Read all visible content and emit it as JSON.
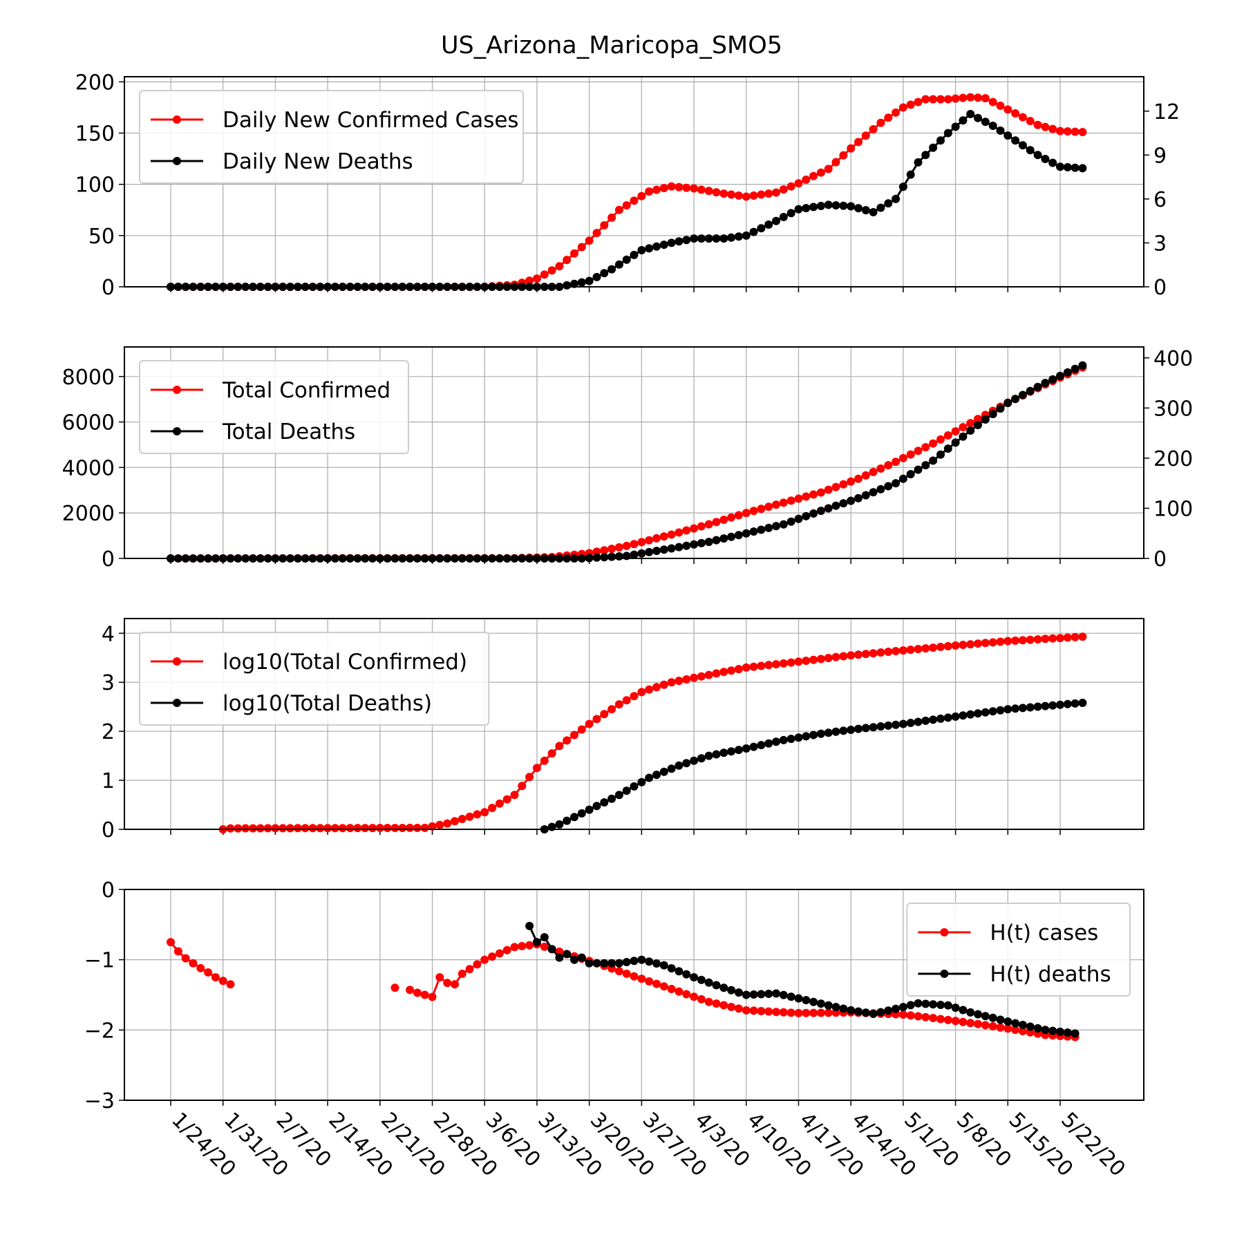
{
  "title": "US_Arizona_Maricopa_SMO5",
  "x_tick_labels": [
    "1/24/20",
    "1/31/20",
    "2/7/20",
    "2/14/20",
    "2/21/20",
    "2/28/20",
    "3/6/20",
    "3/13/20",
    "3/20/20",
    "3/27/20",
    "4/3/20",
    "4/10/20",
    "4/17/20",
    "4/24/20",
    "5/1/20",
    "5/8/20",
    "5/15/20",
    "5/22/20"
  ],
  "colors": {
    "cases": "#ff0000",
    "deaths": "#000000",
    "grid": "#b0b0b0"
  },
  "chart_data": [
    {
      "type": "line",
      "panel": "daily",
      "legend_position": "upper left",
      "grid": true,
      "x_start": "1/24/20",
      "x_end": "5/25/20",
      "ylim": [
        0,
        205
      ],
      "y2lim": [
        0,
        14.35
      ],
      "yticks": [
        "0",
        "50",
        "100",
        "150",
        "200"
      ],
      "y2ticks": [
        "0",
        "3",
        "6",
        "9",
        "12"
      ],
      "series": [
        {
          "name": "Daily New Confirmed Cases",
          "axis": "left",
          "points": [
            [
              "1/24/20",
              0
            ],
            [
              "3/6/20",
              0
            ],
            [
              "3/10/20",
              2
            ],
            [
              "3/13/20",
              8
            ],
            [
              "3/16/20",
              20
            ],
            [
              "3/20/20",
              45
            ],
            [
              "3/24/20",
              75
            ],
            [
              "3/28/20",
              93
            ],
            [
              "3/31/20",
              98
            ],
            [
              "4/3/20",
              96
            ],
            [
              "4/7/20",
              91
            ],
            [
              "4/10/20",
              88
            ],
            [
              "4/14/20",
              92
            ],
            [
              "4/17/20",
              101
            ],
            [
              "4/21/20",
              115
            ],
            [
              "4/24/20",
              135
            ],
            [
              "4/28/20",
              160
            ],
            [
              "5/1/20",
              175
            ],
            [
              "5/4/20",
              183
            ],
            [
              "5/7/20",
              183
            ],
            [
              "5/10/20",
              185
            ],
            [
              "5/12/20",
              184
            ],
            [
              "5/15/20",
              173
            ],
            [
              "5/19/20",
              158
            ],
            [
              "5/22/20",
              152
            ],
            [
              "5/25/20",
              151
            ]
          ]
        },
        {
          "name": "Daily New Deaths",
          "axis": "right",
          "points": [
            [
              "1/24/20",
              0
            ],
            [
              "3/16/20",
              0
            ],
            [
              "3/20/20",
              0.4
            ],
            [
              "3/23/20",
              1.2
            ],
            [
              "3/27/20",
              2.5
            ],
            [
              "3/31/20",
              3.0
            ],
            [
              "4/3/20",
              3.3
            ],
            [
              "4/7/20",
              3.3
            ],
            [
              "4/10/20",
              3.5
            ],
            [
              "4/14/20",
              4.5
            ],
            [
              "4/17/20",
              5.3
            ],
            [
              "4/21/20",
              5.6
            ],
            [
              "4/24/20",
              5.5
            ],
            [
              "4/27/20",
              5.1
            ],
            [
              "4/30/20",
              6.0
            ],
            [
              "5/3/20",
              8.5
            ],
            [
              "5/7/20",
              10.5
            ],
            [
              "5/10/20",
              11.8
            ],
            [
              "5/13/20",
              11.0
            ],
            [
              "5/16/20",
              10.0
            ],
            [
              "5/19/20",
              9.0
            ],
            [
              "5/22/20",
              8.2
            ],
            [
              "5/25/20",
              8.1
            ]
          ]
        }
      ]
    },
    {
      "type": "line",
      "panel": "total",
      "legend_position": "upper left",
      "grid": true,
      "x_start": "1/24/20",
      "x_end": "5/25/20",
      "ylim": [
        0,
        9300
      ],
      "y2lim": [
        0,
        421.8
      ],
      "yticks": [
        "0",
        "2000",
        "4000",
        "6000",
        "8000"
      ],
      "y2ticks": [
        "0",
        "100",
        "200",
        "300",
        "400"
      ],
      "series": [
        {
          "name": "Total Confirmed",
          "axis": "left",
          "points": [
            [
              "1/24/20",
              0
            ],
            [
              "3/10/20",
              10
            ],
            [
              "3/15/20",
              60
            ],
            [
              "3/20/20",
              230
            ],
            [
              "3/25/20",
              550
            ],
            [
              "3/31/20",
              1050
            ],
            [
              "4/5/20",
              1500
            ],
            [
              "4/10/20",
              2000
            ],
            [
              "4/15/20",
              2450
            ],
            [
              "4/20/20",
              2900
            ],
            [
              "4/25/20",
              3500
            ],
            [
              "4/30/20",
              4250
            ],
            [
              "5/5/20",
              5050
            ],
            [
              "5/10/20",
              5950
            ],
            [
              "5/15/20",
              6850
            ],
            [
              "5/20/20",
              7650
            ],
            [
              "5/25/20",
              8400
            ]
          ]
        },
        {
          "name": "Total Deaths",
          "axis": "right",
          "points": [
            [
              "1/24/20",
              0
            ],
            [
              "3/19/20",
              0
            ],
            [
              "3/25/20",
              5
            ],
            [
              "3/31/20",
              20
            ],
            [
              "4/5/20",
              33
            ],
            [
              "4/10/20",
              50
            ],
            [
              "4/15/20",
              68
            ],
            [
              "4/20/20",
              95
            ],
            [
              "4/25/20",
              120
            ],
            [
              "4/30/20",
              150
            ],
            [
              "5/5/20",
              195
            ],
            [
              "5/10/20",
              255
            ],
            [
              "5/15/20",
              310
            ],
            [
              "5/20/20",
              350
            ],
            [
              "5/25/20",
              385
            ]
          ]
        }
      ]
    },
    {
      "type": "line",
      "panel": "log",
      "legend_position": "upper left",
      "grid": true,
      "x_start": "1/24/20",
      "x_end": "5/25/20",
      "ylim": [
        0,
        4.3
      ],
      "yticks": [
        "0",
        "1",
        "2",
        "3",
        "4"
      ],
      "series": [
        {
          "name": "log10(Total Confirmed)",
          "axis": "left",
          "points": [
            [
              "1/31/20",
              0
            ],
            [
              "2/1/20",
              0.02
            ],
            [
              "2/27/20",
              0.03
            ],
            [
              "3/1/20",
              0.12
            ],
            [
              "3/6/20",
              0.35
            ],
            [
              "3/10/20",
              0.7
            ],
            [
              "3/13/20",
              1.25
            ],
            [
              "3/16/20",
              1.7
            ],
            [
              "3/20/20",
              2.15
            ],
            [
              "3/24/20",
              2.55
            ],
            [
              "3/27/20",
              2.8
            ],
            [
              "3/31/20",
              3.0
            ],
            [
              "4/5/20",
              3.15
            ],
            [
              "4/10/20",
              3.3
            ],
            [
              "4/17/20",
              3.42
            ],
            [
              "4/24/20",
              3.55
            ],
            [
              "5/1/20",
              3.65
            ],
            [
              "5/8/20",
              3.75
            ],
            [
              "5/15/20",
              3.84
            ],
            [
              "5/25/20",
              3.93
            ]
          ]
        },
        {
          "name": "log10(Total Deaths)",
          "axis": "left",
          "points": [
            [
              "3/14/20",
              0
            ],
            [
              "3/16/20",
              0.1
            ],
            [
              "3/20/20",
              0.4
            ],
            [
              "3/24/20",
              0.7
            ],
            [
              "3/28/20",
              1.05
            ],
            [
              "4/1/20",
              1.3
            ],
            [
              "4/5/20",
              1.5
            ],
            [
              "4/10/20",
              1.65
            ],
            [
              "4/15/20",
              1.82
            ],
            [
              "4/20/20",
              1.95
            ],
            [
              "4/25/20",
              2.05
            ],
            [
              "5/1/20",
              2.15
            ],
            [
              "5/8/20",
              2.3
            ],
            [
              "5/15/20",
              2.45
            ],
            [
              "5/25/20",
              2.58
            ]
          ]
        }
      ]
    },
    {
      "type": "line",
      "panel": "H(t)",
      "legend_position": "upper right",
      "grid": true,
      "x_start": "1/24/20",
      "x_end": "5/25/20",
      "ylim": [
        -3,
        0
      ],
      "yticks": [
        "−3",
        "−2",
        "−1",
        "0"
      ],
      "series": [
        {
          "name": "H(t) cases",
          "axis": "left",
          "points": [
            [
              "1/24/20",
              -0.75
            ],
            [
              "1/25/20",
              -0.88
            ],
            [
              "1/26/20",
              -0.98
            ],
            [
              "1/27/20",
              -1.05
            ],
            [
              "1/28/20",
              -1.12
            ],
            [
              "1/29/20",
              -1.18
            ],
            [
              "1/30/20",
              -1.25
            ],
            [
              "1/31/20",
              -1.3
            ],
            [
              "2/1/20",
              null
            ],
            [
              "2/1/20",
              -1.35
            ],
            [
              "2/2/20",
              null
            ],
            [
              "2/23/20",
              -1.4
            ],
            [
              "2/24/20",
              null
            ],
            [
              "2/25/20",
              -1.43
            ],
            [
              "2/26/20",
              -1.47
            ],
            [
              "2/27/20",
              -1.5
            ],
            [
              "2/28/20",
              -1.53
            ],
            [
              "2/29/20",
              -1.25
            ],
            [
              "3/1/20",
              -1.33
            ],
            [
              "3/2/20",
              -1.35
            ],
            [
              "3/3/20",
              -1.2
            ],
            [
              "3/6/20",
              -1.0
            ],
            [
              "3/10/20",
              -0.82
            ],
            [
              "3/13/20",
              -0.78
            ],
            [
              "3/17/20",
              -0.92
            ],
            [
              "3/21/20",
              -1.05
            ],
            [
              "3/25/20",
              -1.2
            ],
            [
              "3/30/20",
              -1.38
            ],
            [
              "4/5/20",
              -1.6
            ],
            [
              "4/10/20",
              -1.72
            ],
            [
              "4/17/20",
              -1.76
            ],
            [
              "4/24/20",
              -1.75
            ],
            [
              "5/1/20",
              -1.78
            ],
            [
              "5/5/20",
              -1.83
            ],
            [
              "5/10/20",
              -1.9
            ],
            [
              "5/15/20",
              -1.98
            ],
            [
              "5/20/20",
              -2.07
            ],
            [
              "5/24/20",
              -2.1
            ]
          ]
        },
        {
          "name": "H(t) deaths",
          "axis": "left",
          "points": [
            [
              "3/12/20",
              -0.52
            ],
            [
              "3/13/20",
              -0.75
            ],
            [
              "3/14/20",
              -0.68
            ],
            [
              "3/15/20",
              -0.85
            ],
            [
              "3/16/20",
              -0.97
            ],
            [
              "3/17/20",
              -0.92
            ],
            [
              "3/18/20",
              -1.0
            ],
            [
              "3/19/20",
              -0.97
            ],
            [
              "3/20/20",
              -1.05
            ],
            [
              "3/24/20",
              -1.05
            ],
            [
              "3/27/20",
              -1.0
            ],
            [
              "3/30/20",
              -1.08
            ],
            [
              "4/3/20",
              -1.25
            ],
            [
              "4/7/20",
              -1.4
            ],
            [
              "4/10/20",
              -1.5
            ],
            [
              "4/14/20",
              -1.48
            ],
            [
              "4/17/20",
              -1.55
            ],
            [
              "4/21/20",
              -1.65
            ],
            [
              "4/24/20",
              -1.72
            ],
            [
              "4/27/20",
              -1.77
            ],
            [
              "4/30/20",
              -1.7
            ],
            [
              "5/3/20",
              -1.62
            ],
            [
              "5/7/20",
              -1.65
            ],
            [
              "5/10/20",
              -1.75
            ],
            [
              "5/15/20",
              -1.88
            ],
            [
              "5/20/20",
              -2.0
            ],
            [
              "5/24/20",
              -2.05
            ]
          ]
        }
      ]
    }
  ]
}
